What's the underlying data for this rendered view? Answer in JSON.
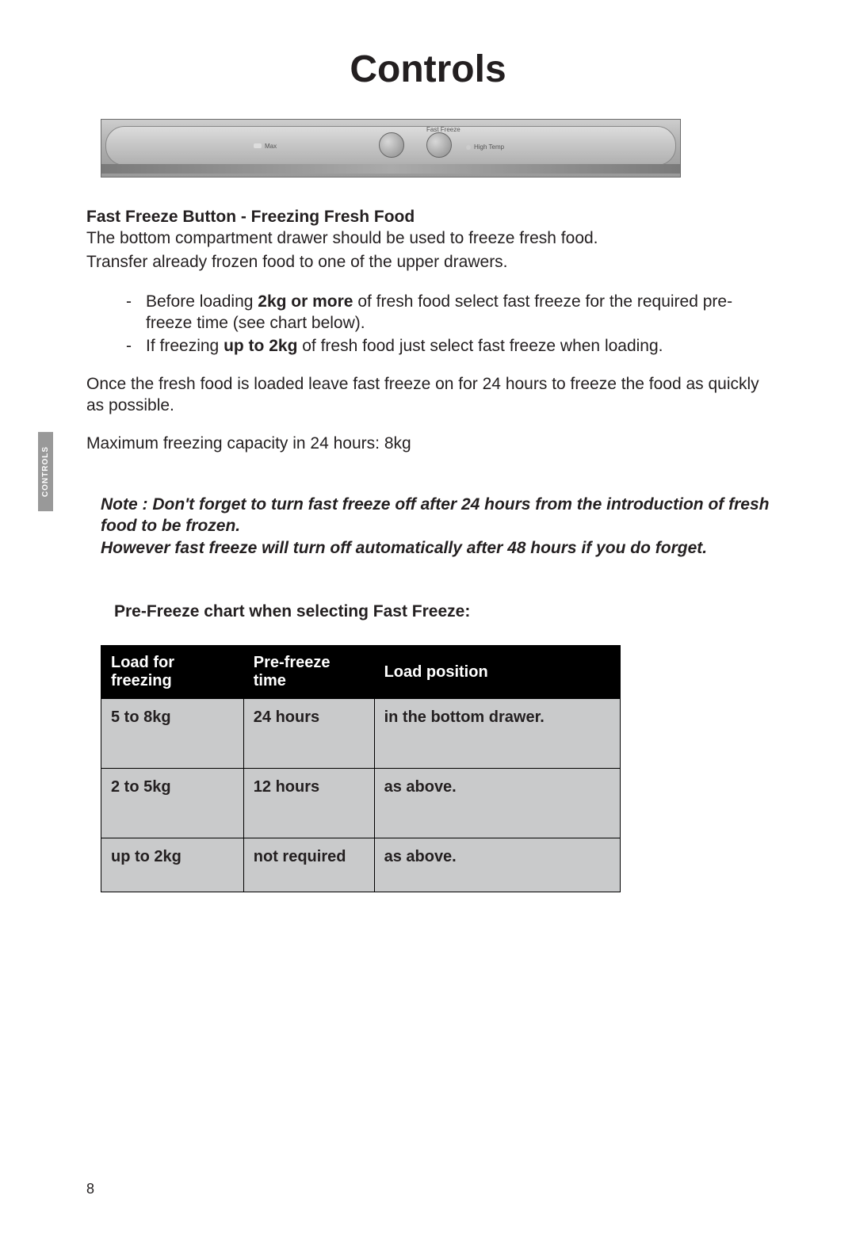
{
  "page_title": "Controls",
  "side_tab": "CONTROLS",
  "page_number": "8",
  "control_panel": {
    "label_left": "Max",
    "label_top": "Fast Freeze",
    "label_right": "High Temp"
  },
  "section": {
    "heading": "Fast Freeze Button - Freezing Fresh Food",
    "intro_line1": "The bottom compartment drawer should be used to freeze fresh food.",
    "intro_line2": "Transfer already frozen food to one of the upper drawers.",
    "bullet1_pre": "Before loading ",
    "bullet1_bold": "2kg or more",
    "bullet1_post": " of fresh food select fast freeze for the required pre-freeze time (see chart below).",
    "bullet2_pre": "If freezing ",
    "bullet2_bold": "up to 2kg",
    "bullet2_post": " of fresh food just select fast freeze when loading.",
    "after1": "Once the fresh food is loaded leave fast freeze on for 24 hours to freeze the food as quickly as possible.",
    "after2": "Maximum freezing capacity in 24 hours:  8kg",
    "note1": "Note : Don't forget to turn fast freeze off after 24 hours from the introduction of fresh food to be frozen.",
    "note2": "However fast freeze will turn off automatically after 48 hours if you do forget."
  },
  "chart": {
    "title": "Pre-Freeze chart when selecting Fast Freeze:",
    "headers": {
      "col1": "Load for freezing",
      "col2": "Pre-freeze time",
      "col3": "Load position"
    },
    "rows": [
      {
        "load": "5 to 8kg",
        "time": "24 hours",
        "position": "in the bottom drawer."
      },
      {
        "load": "2 to 5kg",
        "time": "12 hours",
        "position": "as above."
      },
      {
        "load": "up to 2kg",
        "time": "not required",
        "position": "as above."
      }
    ]
  },
  "colors": {
    "text": "#231f20",
    "table_header_bg": "#000000",
    "table_header_fg": "#ffffff",
    "table_cell_bg": "#c9cacb",
    "side_tab_bg": "#999999"
  }
}
